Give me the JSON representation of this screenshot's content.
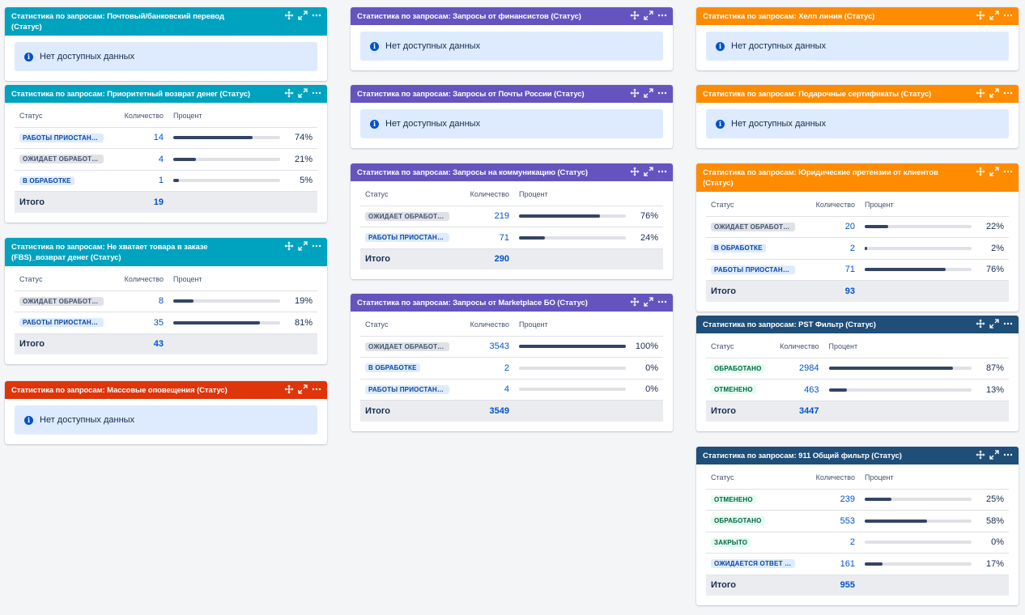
{
  "labels": {
    "status": "Статус",
    "count": "Количество",
    "percent": "Процент",
    "total": "Итого",
    "no_data": "Нет доступных данных"
  },
  "colors": {
    "teal": "#00a3bf",
    "purple": "#6554c0",
    "orange": "#ff8b00",
    "red": "#de350b",
    "navy": "#1f4e79"
  },
  "icons": [
    "move-icon",
    "expand-icon",
    "more-icon",
    "info-icon"
  ],
  "gadgets": {
    "g1": {
      "title": "Статистика по запросам: Почтовый/банковский перевод (Статус)"
    },
    "g2": {
      "title": "Статистика по запросам: Приоритетный возврат денег (Статус)",
      "rows": [
        {
          "status": "РАБОТЫ ПРИОСТАНО...",
          "count": "14",
          "pct": "74%",
          "fill": 74
        },
        {
          "status": "ОЖИДАЕТ ОБРАБОТКИ",
          "count": "4",
          "pct": "21%",
          "fill": 21
        },
        {
          "status": "В ОБРАБОТКЕ",
          "count": "1",
          "pct": "5%",
          "fill": 5
        }
      ],
      "total": "19"
    },
    "g3": {
      "title": "Статистика по запросам: Не хватает товара в заказе (FBS)_возврат денег (Статус)",
      "rows": [
        {
          "status": "ОЖИДАЕТ ОБРАБОТКИ",
          "count": "8",
          "pct": "19%",
          "fill": 19
        },
        {
          "status": "РАБОТЫ ПРИОСТАНО...",
          "count": "35",
          "pct": "81%",
          "fill": 81
        }
      ],
      "total": "43"
    },
    "g4": {
      "title": "Статистика по запросам: Массовые оповещения (Статус)"
    },
    "g5": {
      "title": "Статистика по запросам: Запросы от финансистов (Статус)"
    },
    "g6": {
      "title": "Статистика по запросам: Запросы от Почты России (Статус)"
    },
    "g7": {
      "title": "Статистика по запросам: Запросы на коммуникацию (Статус)",
      "rows": [
        {
          "status": "ОЖИДАЕТ ОБРАБОТКИ",
          "count": "219",
          "pct": "76%",
          "fill": 76
        },
        {
          "status": "РАБОТЫ ПРИОСТАНО...",
          "count": "71",
          "pct": "24%",
          "fill": 24
        }
      ],
      "total": "290"
    },
    "g8": {
      "title": "Статистика по запросам: Запросы от Marketplace БО (Статус)",
      "rows": [
        {
          "status": "ОЖИДАЕТ ОБРАБОТКИ",
          "count": "3543",
          "pct": "100%",
          "fill": 100
        },
        {
          "status": "В ОБРАБОТКЕ",
          "count": "2",
          "pct": "0%",
          "fill": 0
        },
        {
          "status": "РАБОТЫ ПРИОСТАНО...",
          "count": "4",
          "pct": "0%",
          "fill": 0
        }
      ],
      "total": "3549"
    },
    "g9": {
      "title": "Статистика по запросам: Хелп линия (Статус)"
    },
    "g10": {
      "title": "Статистика по запросам: Подарочные сертификаты (Статус)"
    },
    "g11": {
      "title": "Статистика по запросам: Юридические претензии от клиентов (Статус)",
      "rows": [
        {
          "status": "ОЖИДАЕТ ОБРАБОТКИ",
          "count": "20",
          "pct": "22%",
          "fill": 22
        },
        {
          "status": "В ОБРАБОТКЕ",
          "count": "2",
          "pct": "2%",
          "fill": 2
        },
        {
          "status": "РАБОТЫ ПРИОСТАНО...",
          "count": "71",
          "pct": "76%",
          "fill": 76
        }
      ],
      "total": "93"
    },
    "g12": {
      "title": "Статистика по запросам: PST Фильтр (Статус)",
      "rows": [
        {
          "status": "ОБРАБОТАНО",
          "count": "2984",
          "pct": "87%",
          "fill": 87
        },
        {
          "status": "ОТМЕНЕНО",
          "count": "463",
          "pct": "13%",
          "fill": 13
        }
      ],
      "total": "3447"
    },
    "g13": {
      "title": "Статистика по запросам: 911 Общий фильтр (Статус)",
      "rows": [
        {
          "status": "ОТМЕНЕНО",
          "count": "239",
          "pct": "25%",
          "fill": 25
        },
        {
          "status": "ОБРАБОТАНО",
          "count": "553",
          "pct": "58%",
          "fill": 58
        },
        {
          "status": "ЗАКРЫТО",
          "count": "2",
          "pct": "0%",
          "fill": 0
        },
        {
          "status": "ОЖИДАЕТСЯ ОТВЕТ П...",
          "count": "161",
          "pct": "17%",
          "fill": 17
        }
      ],
      "total": "955"
    }
  }
}
